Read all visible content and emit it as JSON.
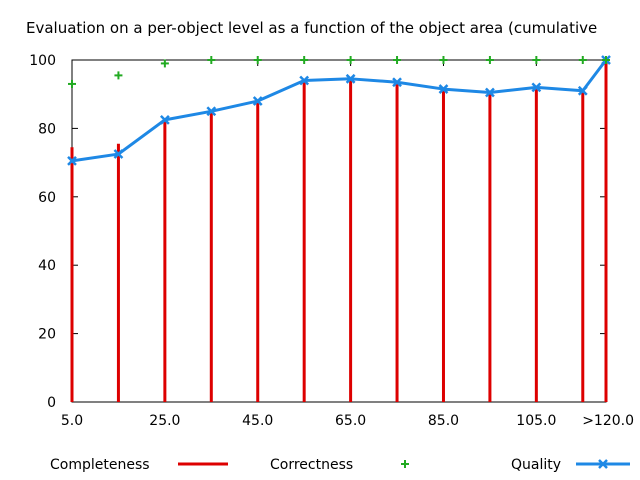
{
  "chart_data": {
    "type": "bar",
    "title": "Evaluation on a per-object level as a function of the object area (cumulative",
    "x_positions": [
      5,
      15,
      25,
      35,
      45,
      55,
      65,
      75,
      85,
      95,
      105,
      115,
      120
    ],
    "xticks": [
      {
        "x": 5,
        "label": "5.0"
      },
      {
        "x": 25,
        "label": "25.0"
      },
      {
        "x": 45,
        "label": "45.0"
      },
      {
        "x": 65,
        "label": "65.0"
      },
      {
        "x": 85,
        "label": "85.0"
      },
      {
        "x": 105,
        "label": "105.0"
      },
      {
        "x": 120,
        "label": ">120.0"
      }
    ],
    "yticks": [
      0,
      20,
      40,
      60,
      80,
      100
    ],
    "xlim": [
      5,
      120
    ],
    "ylim": [
      0,
      100
    ],
    "grid": false,
    "legend_position": "bottom",
    "series": [
      {
        "name": "Completeness",
        "style": "impulses",
        "color": "#dd0000",
        "values": [
          74.5,
          75.5,
          82.0,
          85.0,
          87.5,
          93.5,
          94.5,
          93.5,
          91.0,
          90.5,
          92.0,
          91.5,
          100.0
        ]
      },
      {
        "name": "Correctness",
        "style": "points",
        "color": "#22aa22",
        "values": [
          93.0,
          95.5,
          99.0,
          100.0,
          100.0,
          100.0,
          100.0,
          100.0,
          100.0,
          100.0,
          100.0,
          100.0,
          100.0
        ]
      },
      {
        "name": "Quality",
        "style": "linespoints",
        "color": "#1e88e5",
        "values": [
          70.5,
          72.5,
          82.5,
          85.0,
          88.0,
          94.0,
          94.5,
          93.5,
          91.5,
          90.5,
          92.0,
          91.0,
          100.0
        ]
      }
    ]
  }
}
